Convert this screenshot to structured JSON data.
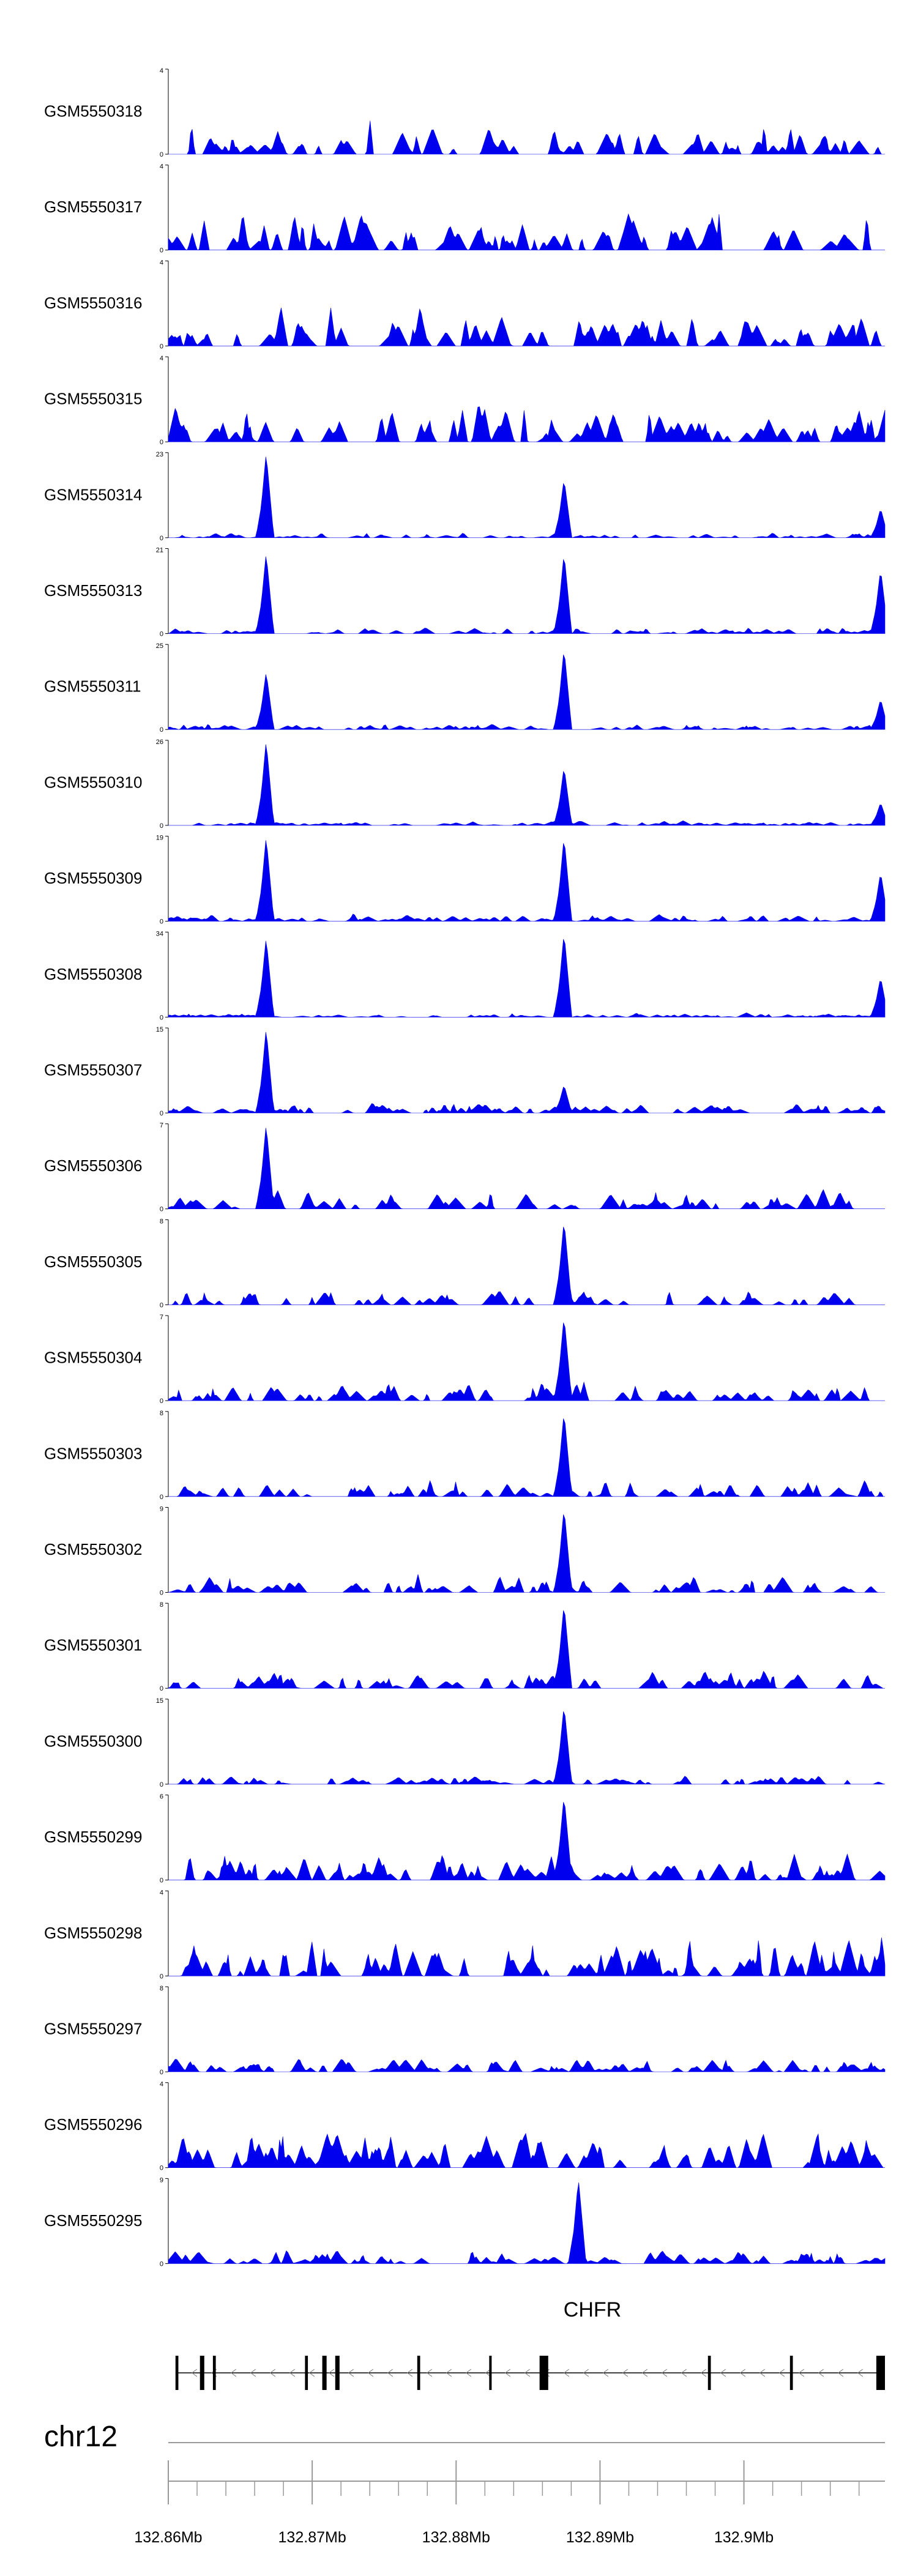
{
  "chart_data": {
    "type": "area",
    "chromosome": "chr12",
    "gene": {
      "name": "CHFR",
      "strand": "-",
      "start": 132.8605,
      "end": 132.9098,
      "exons": [
        [
          132.8605,
          132.8607
        ],
        [
          132.8622,
          132.8625
        ],
        [
          132.8631,
          132.8633
        ],
        [
          132.8695,
          132.8697
        ],
        [
          132.8707,
          132.871
        ],
        [
          132.8716,
          132.8719
        ],
        [
          132.8773,
          132.8775
        ],
        [
          132.8823,
          132.8824
        ],
        [
          132.8858,
          132.8864
        ],
        [
          132.8975,
          132.8977
        ],
        [
          132.9032,
          132.9034
        ],
        [
          132.9092,
          132.9098
        ]
      ]
    },
    "genome_axis": {
      "xlim": [
        132.86,
        132.9098
      ],
      "major_ticks": [
        132.86,
        132.87,
        132.88,
        132.89,
        132.9
      ],
      "major_tick_labels": [
        "132.86Mb",
        "132.87Mb",
        "132.88Mb",
        "132.89Mb",
        "132.9Mb"
      ],
      "minor_step": 0.002
    },
    "series": [
      {
        "name": "GSM5550318",
        "ylim": [
          0,
          4
        ],
        "peaks": [],
        "bg": 1.3
      },
      {
        "name": "GSM5550317",
        "ylim": [
          0,
          4
        ],
        "peaks": [],
        "bg": 1.7
      },
      {
        "name": "GSM5550316",
        "ylim": [
          0,
          4
        ],
        "peaks": [],
        "bg": 1.7
      },
      {
        "name": "GSM5550315",
        "ylim": [
          0,
          4
        ],
        "peaks": [],
        "bg": 1.6
      },
      {
        "name": "GSM5550314",
        "ylim": [
          0,
          23
        ],
        "peaks": [
          [
            132.8668,
            23
          ],
          [
            132.8875,
            16
          ],
          [
            132.9095,
            8
          ]
        ],
        "bg": 1.2
      },
      {
        "name": "GSM5550313",
        "ylim": [
          0,
          21
        ],
        "peaks": [
          [
            132.8668,
            20
          ],
          [
            132.8875,
            20
          ],
          [
            132.9095,
            16
          ]
        ],
        "bg": 1.3
      },
      {
        "name": "GSM5550311",
        "ylim": [
          0,
          25
        ],
        "peaks": [
          [
            132.8668,
            17
          ],
          [
            132.8875,
            24
          ],
          [
            132.9095,
            9
          ]
        ],
        "bg": 1.5
      },
      {
        "name": "GSM5550310",
        "ylim": [
          0,
          26
        ],
        "peaks": [
          [
            132.8668,
            26
          ],
          [
            132.8875,
            18
          ],
          [
            132.9095,
            7
          ]
        ],
        "bg": 1.2
      },
      {
        "name": "GSM5550309",
        "ylim": [
          0,
          19
        ],
        "peaks": [
          [
            132.8668,
            19
          ],
          [
            132.8875,
            19
          ],
          [
            132.9095,
            11
          ]
        ],
        "bg": 1.5
      },
      {
        "name": "GSM5550308",
        "ylim": [
          0,
          34
        ],
        "peaks": [
          [
            132.8668,
            32
          ],
          [
            132.8875,
            34
          ],
          [
            132.9095,
            16
          ]
        ],
        "bg": 1.5
      },
      {
        "name": "GSM5550307",
        "ylim": [
          0,
          15
        ],
        "peaks": [
          [
            132.8668,
            15
          ],
          [
            132.8875,
            5
          ]
        ],
        "bg": 1.6
      },
      {
        "name": "GSM5550306",
        "ylim": [
          0,
          7
        ],
        "peaks": [
          [
            132.8668,
            7
          ]
        ],
        "bg": 1.4
      },
      {
        "name": "GSM5550305",
        "ylim": [
          0,
          8
        ],
        "peaks": [
          [
            132.8875,
            8
          ]
        ],
        "bg": 1.3
      },
      {
        "name": "GSM5550304",
        "ylim": [
          0,
          7
        ],
        "peaks": [
          [
            132.8875,
            7
          ]
        ],
        "bg": 1.4
      },
      {
        "name": "GSM5550303",
        "ylim": [
          0,
          8
        ],
        "peaks": [
          [
            132.8875,
            8
          ]
        ],
        "bg": 1.3
      },
      {
        "name": "GSM5550302",
        "ylim": [
          0,
          9
        ],
        "peaks": [
          [
            132.8875,
            9
          ]
        ],
        "bg": 1.6
      },
      {
        "name": "GSM5550301",
        "ylim": [
          0,
          8
        ],
        "peaks": [
          [
            132.8875,
            8
          ]
        ],
        "bg": 1.5
      },
      {
        "name": "GSM5550300",
        "ylim": [
          0,
          15
        ],
        "peaks": [
          [
            132.8875,
            14
          ]
        ],
        "bg": 1.5
      },
      {
        "name": "GSM5550299",
        "ylim": [
          0,
          6
        ],
        "peaks": [
          [
            132.8875,
            6
          ]
        ],
        "bg": 1.6
      },
      {
        "name": "GSM5550298",
        "ylim": [
          0,
          4
        ],
        "peaks": [],
        "bg": 1.6
      },
      {
        "name": "GSM5550297",
        "ylim": [
          0,
          8
        ],
        "peaks": [],
        "bg": 1.2
      },
      {
        "name": "GSM5550296",
        "ylim": [
          0,
          4
        ],
        "peaks": [],
        "bg": 1.7
      },
      {
        "name": "GSM5550295",
        "ylim": [
          0,
          9
        ],
        "peaks": [
          [
            132.8885,
            9
          ]
        ],
        "bg": 1.3
      }
    ]
  },
  "colors": {
    "signal": "#0000ee",
    "gene": "#000000",
    "axis": "#999999"
  }
}
